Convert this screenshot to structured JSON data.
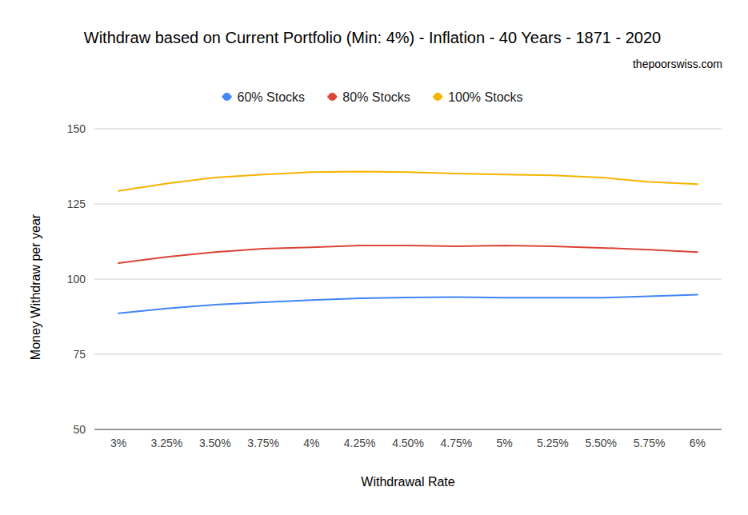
{
  "chart_data": {
    "type": "line",
    "title": "Withdraw based on Current Portfolio (Min: 4%) - Inflation - 40 Years - 1871 - 2020",
    "subtitle": "thepoorswiss.com",
    "x_label": "Withdrawal Rate",
    "y_label": "Money Withdraw per year",
    "categories": [
      "3%",
      "3.25%",
      "3.50%",
      "3.75%",
      "4%",
      "4.25%",
      "4.50%",
      "4.75%",
      "5%",
      "5.25%",
      "5.50%",
      "5.75%",
      "6%"
    ],
    "series": [
      {
        "name": "60% Stocks",
        "color": "#4285f4",
        "values": [
          88.6,
          90.2,
          91.5,
          92.3,
          93.0,
          93.6,
          93.9,
          94.0,
          93.8,
          93.8,
          93.8,
          94.3,
          94.8
        ]
      },
      {
        "name": "80% Stocks",
        "color": "#db4437",
        "values": [
          105.3,
          107.4,
          109.0,
          110.1,
          110.6,
          111.2,
          111.2,
          110.9,
          111.2,
          110.9,
          110.4,
          109.8,
          109.0
        ]
      },
      {
        "name": "100% Stocks",
        "color": "#f4b400",
        "values": [
          129.3,
          131.8,
          133.8,
          134.8,
          135.6,
          135.8,
          135.6,
          135.1,
          134.8,
          134.5,
          133.8,
          132.3,
          131.6
        ]
      }
    ],
    "ylim": [
      50,
      150
    ],
    "yticks": [
      50,
      75,
      100,
      125,
      150
    ],
    "grid": true,
    "legend": "top"
  }
}
